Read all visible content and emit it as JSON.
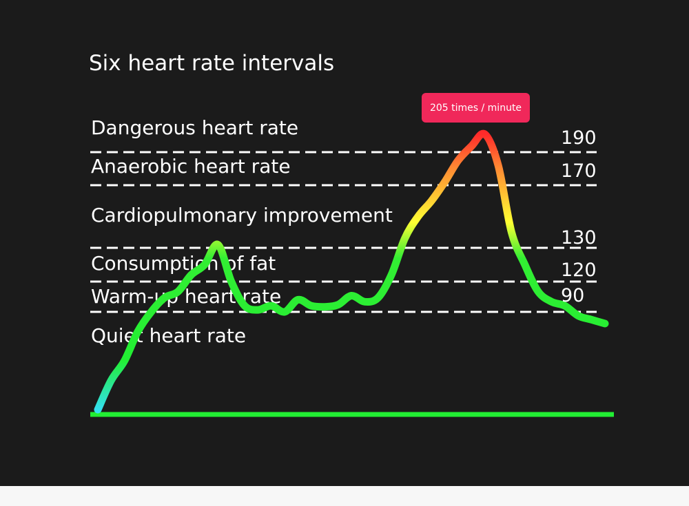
{
  "chart_data": {
    "type": "line",
    "title": "Six heart rate intervals",
    "zones": [
      "Dangerous heart rate",
      "Anaerobic heart rate",
      "Cardiopulmonary improvement",
      "Consumption of fat",
      "Warm-up heart rate",
      "Quiet heart rate"
    ],
    "thresholds": [
      190,
      170,
      130,
      120,
      90
    ],
    "threshold_labels": [
      "190",
      "170",
      "130",
      "120",
      "90"
    ],
    "peak_label": "205 times / minute",
    "series": [
      {
        "values": [
          40,
          55,
          65,
          80,
          90,
          104,
          110,
          122,
          125,
          132,
          120,
          96,
          92,
          96,
          90,
          102,
          96,
          95,
          97,
          106,
          100,
          104,
          122,
          136,
          150,
          160,
          172,
          185,
          195,
          205,
          182,
          140,
          125,
          110,
          100,
          96,
          88,
          86,
          84
        ]
      }
    ],
    "colors": {
      "background": "#1b1b1b",
      "baseline": "#22ee33",
      "dashed": "#ffffff",
      "badge": "#f0285a",
      "gradient": [
        "#33e0f0",
        "#22ee33",
        "#ffff33",
        "#ff3333"
      ]
    }
  }
}
